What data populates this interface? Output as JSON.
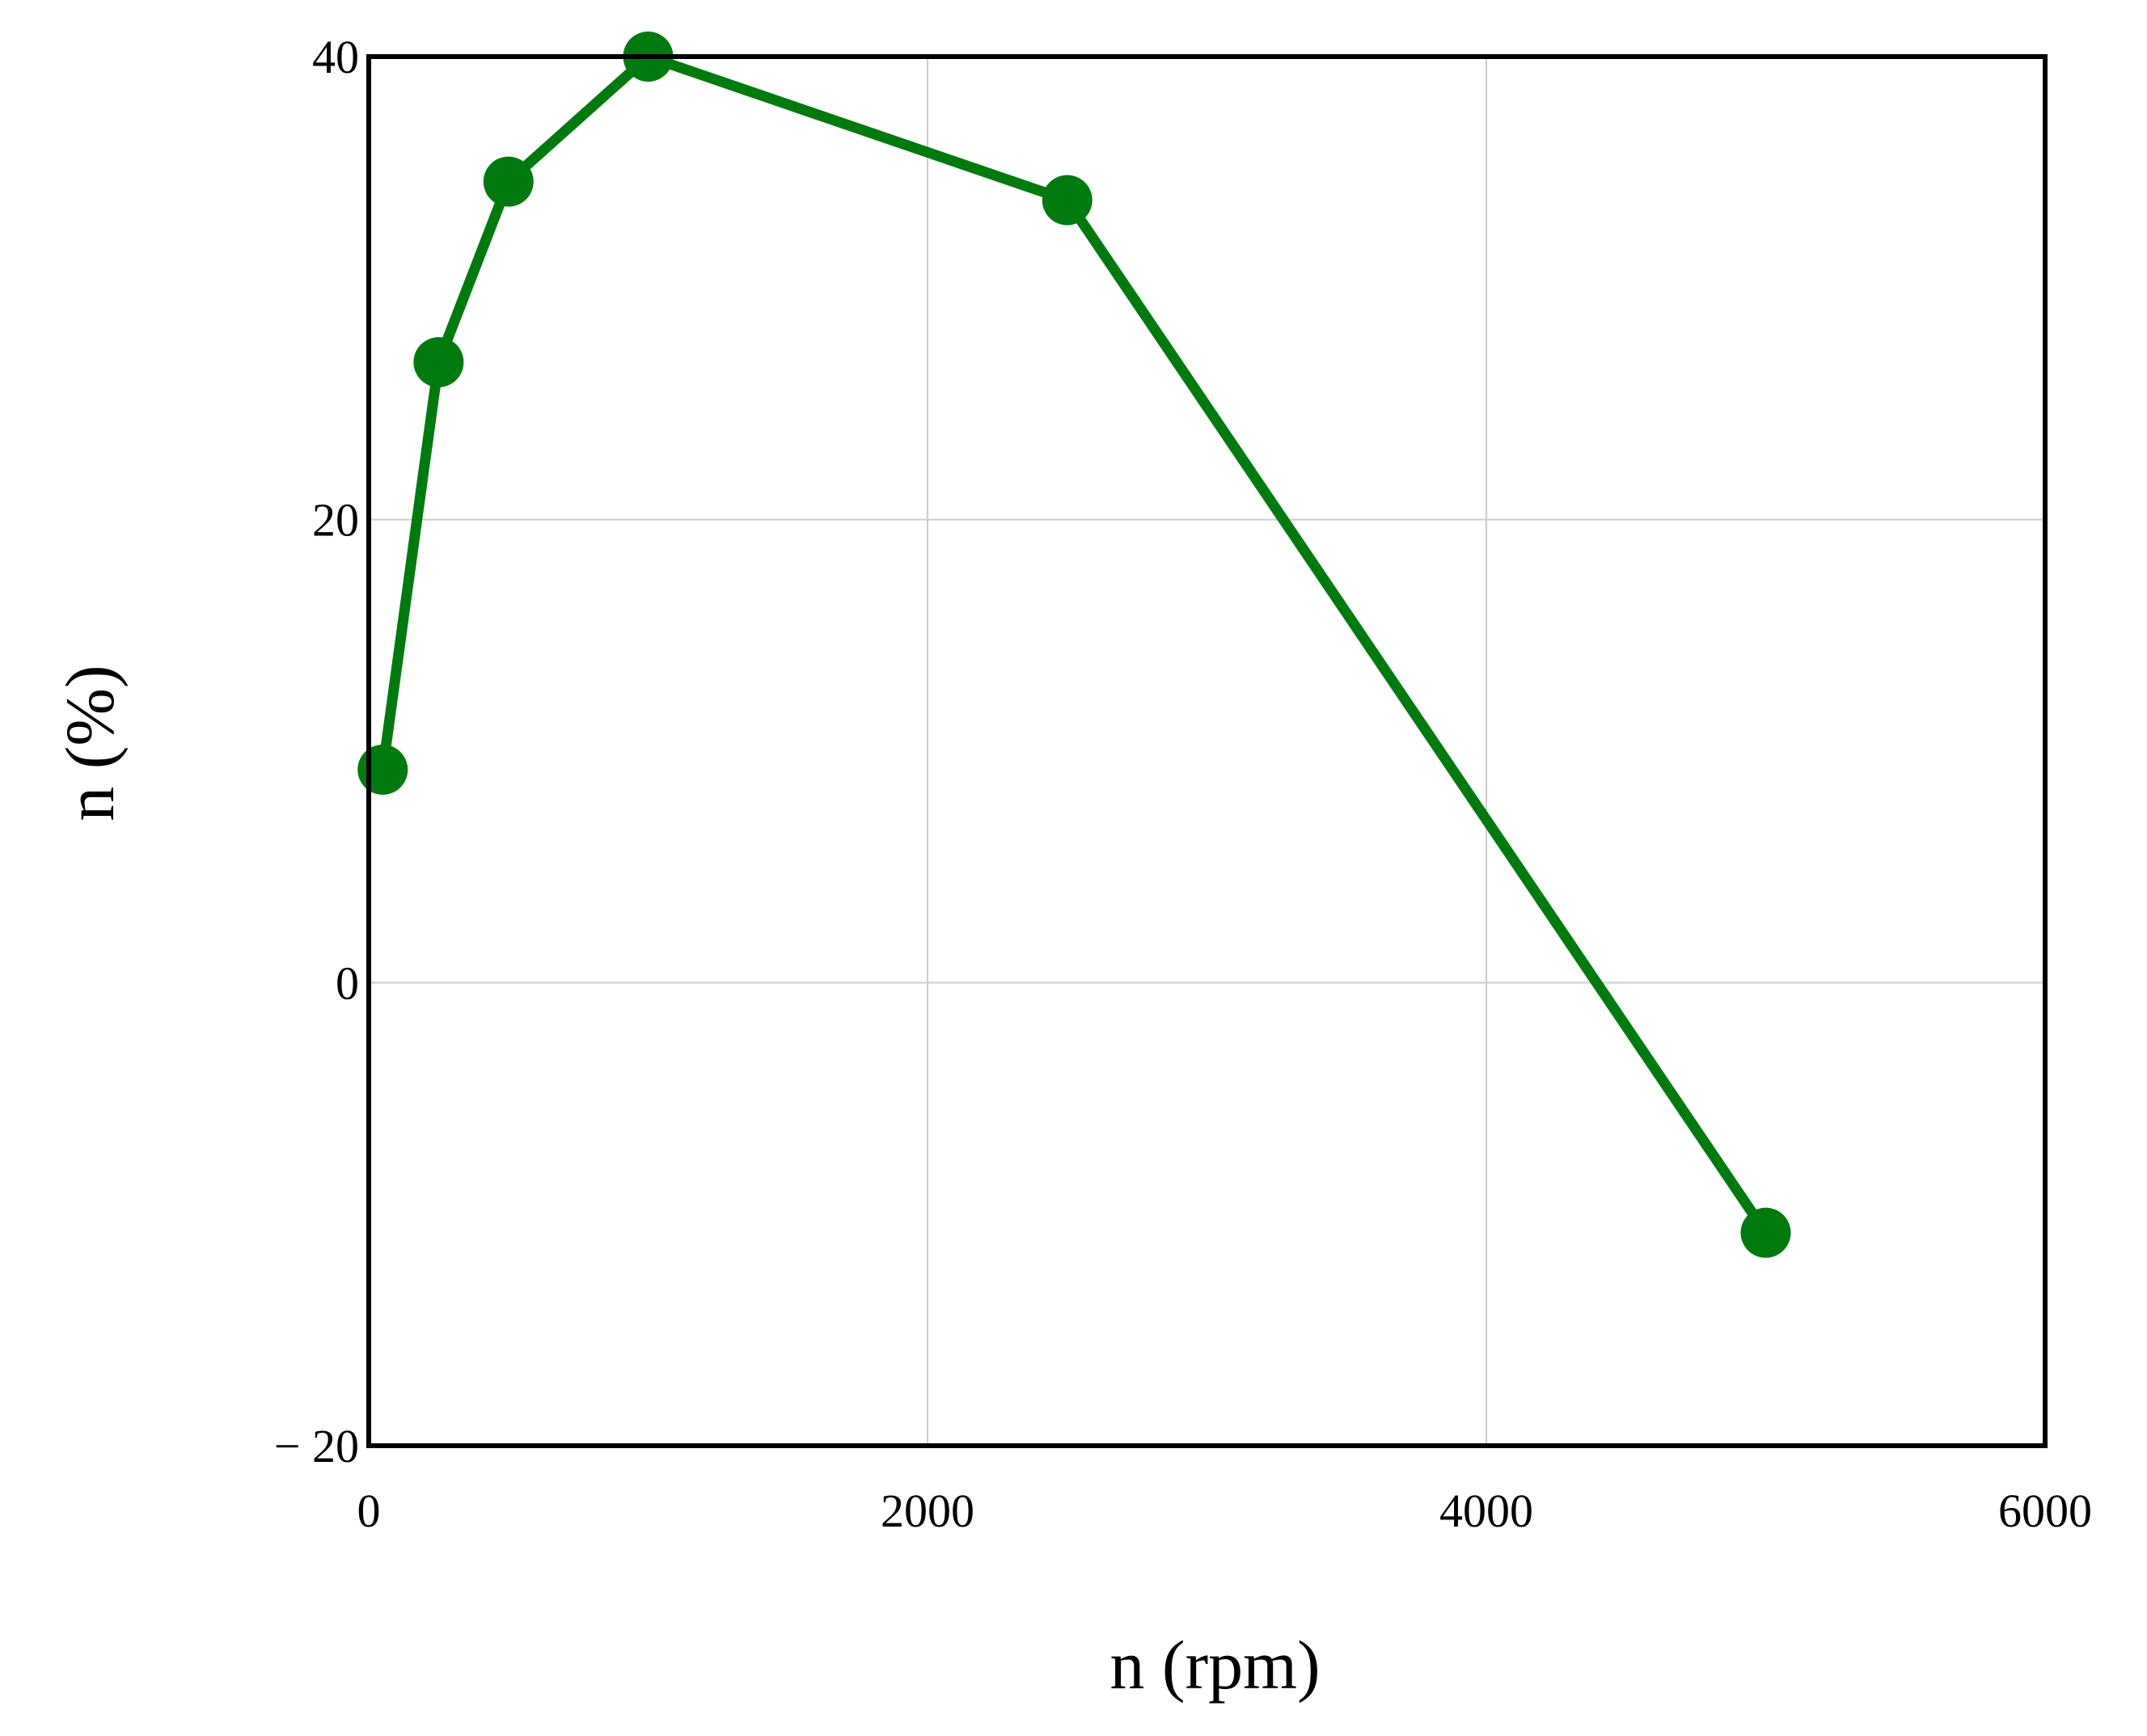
{
  "chart_data": {
    "type": "line",
    "title": "",
    "xlabel": "n (rpm)",
    "ylabel": "n (%)",
    "xlim": [
      0,
      6000
    ],
    "ylim": [
      -20,
      40
    ],
    "x_ticks": [
      0,
      2000,
      4000,
      6000
    ],
    "x_tick_labels": [
      "0",
      "2000",
      "4000",
      "6000"
    ],
    "y_ticks": [
      -20,
      0,
      20,
      40
    ],
    "y_tick_labels": [
      "− 20",
      "0",
      "20",
      "40"
    ],
    "grid": true,
    "legend": "none",
    "series": [
      {
        "color": "#007a0e",
        "marker": "circle",
        "x": [
          50,
          250,
          500,
          1000,
          2500,
          5000
        ],
        "y": [
          9.2,
          26.8,
          34.6,
          40,
          33.8,
          -10.8
        ]
      }
    ]
  },
  "colors": {
    "background": "#ffffff",
    "grid": "#cccccc",
    "frame": "#000000",
    "series": "#007a0e"
  }
}
